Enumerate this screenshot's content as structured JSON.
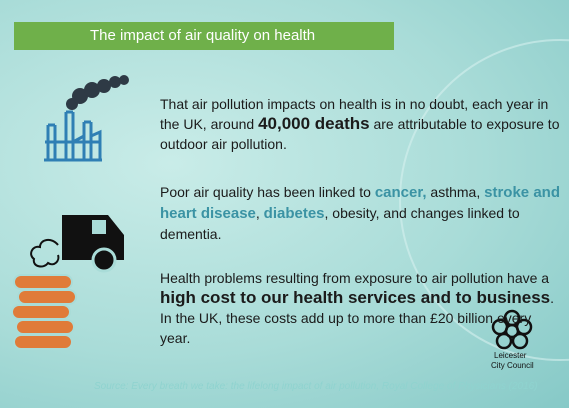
{
  "header": {
    "title": "The impact of air quality on health"
  },
  "paragraphs": [
    [
      "That air pollution impacts on health is in no doubt, each year in the UK, around ",
      "40,000 deaths",
      " are attributable to exposure to outdoor air pollution."
    ],
    [
      "Poor air quality has been linked to ",
      "cancer,",
      " asthma, ",
      "stroke and heart disease",
      ", ",
      "diabetes",
      ", obesity, and changes linked to dementia."
    ],
    [
      "Health problems resulting from exposure to air pollution have a ",
      "high cost to our health services and to business",
      ". In the UK, these costs add up to more than £20 billion every year."
    ]
  ],
  "logo": {
    "line1": "Leicester",
    "line2": "City Council"
  },
  "source": "Source: Every breath we take: the lifelong impact of air pollution, Royal College of Physicians (2016)"
}
